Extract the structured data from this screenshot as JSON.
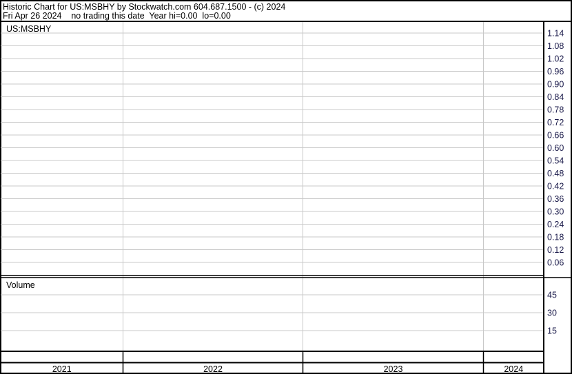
{
  "header": {
    "title": "Historic Chart for US:MSBHY by Stockwatch.com 604.687.1500 - (c) 2024",
    "status": "Fri Apr 26 2024    no trading this date  Year hi=0.00  lo=0.00"
  },
  "colors": {
    "grid": "#c8c8c8",
    "border": "#000000",
    "tick_text": "#1a1a4a"
  },
  "chart_data": [
    {
      "type": "line",
      "title": "US:MSBHY",
      "series": [],
      "y_ticks": [
        "1.14",
        "1.08",
        "1.02",
        "0.96",
        "0.90",
        "0.84",
        "0.78",
        "0.72",
        "0.66",
        "0.60",
        "0.54",
        "0.48",
        "0.42",
        "0.36",
        "0.30",
        "0.24",
        "0.18",
        "0.12",
        "0.06"
      ],
      "ylim": [
        0.0,
        1.14
      ],
      "x_categories": [
        "2021",
        "2022",
        "2023",
        "2024"
      ],
      "grid": true,
      "y_axis_side": "right"
    },
    {
      "type": "bar",
      "title": "Volume",
      "series": [],
      "y_ticks": [
        "45",
        "30",
        "15"
      ],
      "grid": true,
      "y_axis_side": "right"
    }
  ]
}
